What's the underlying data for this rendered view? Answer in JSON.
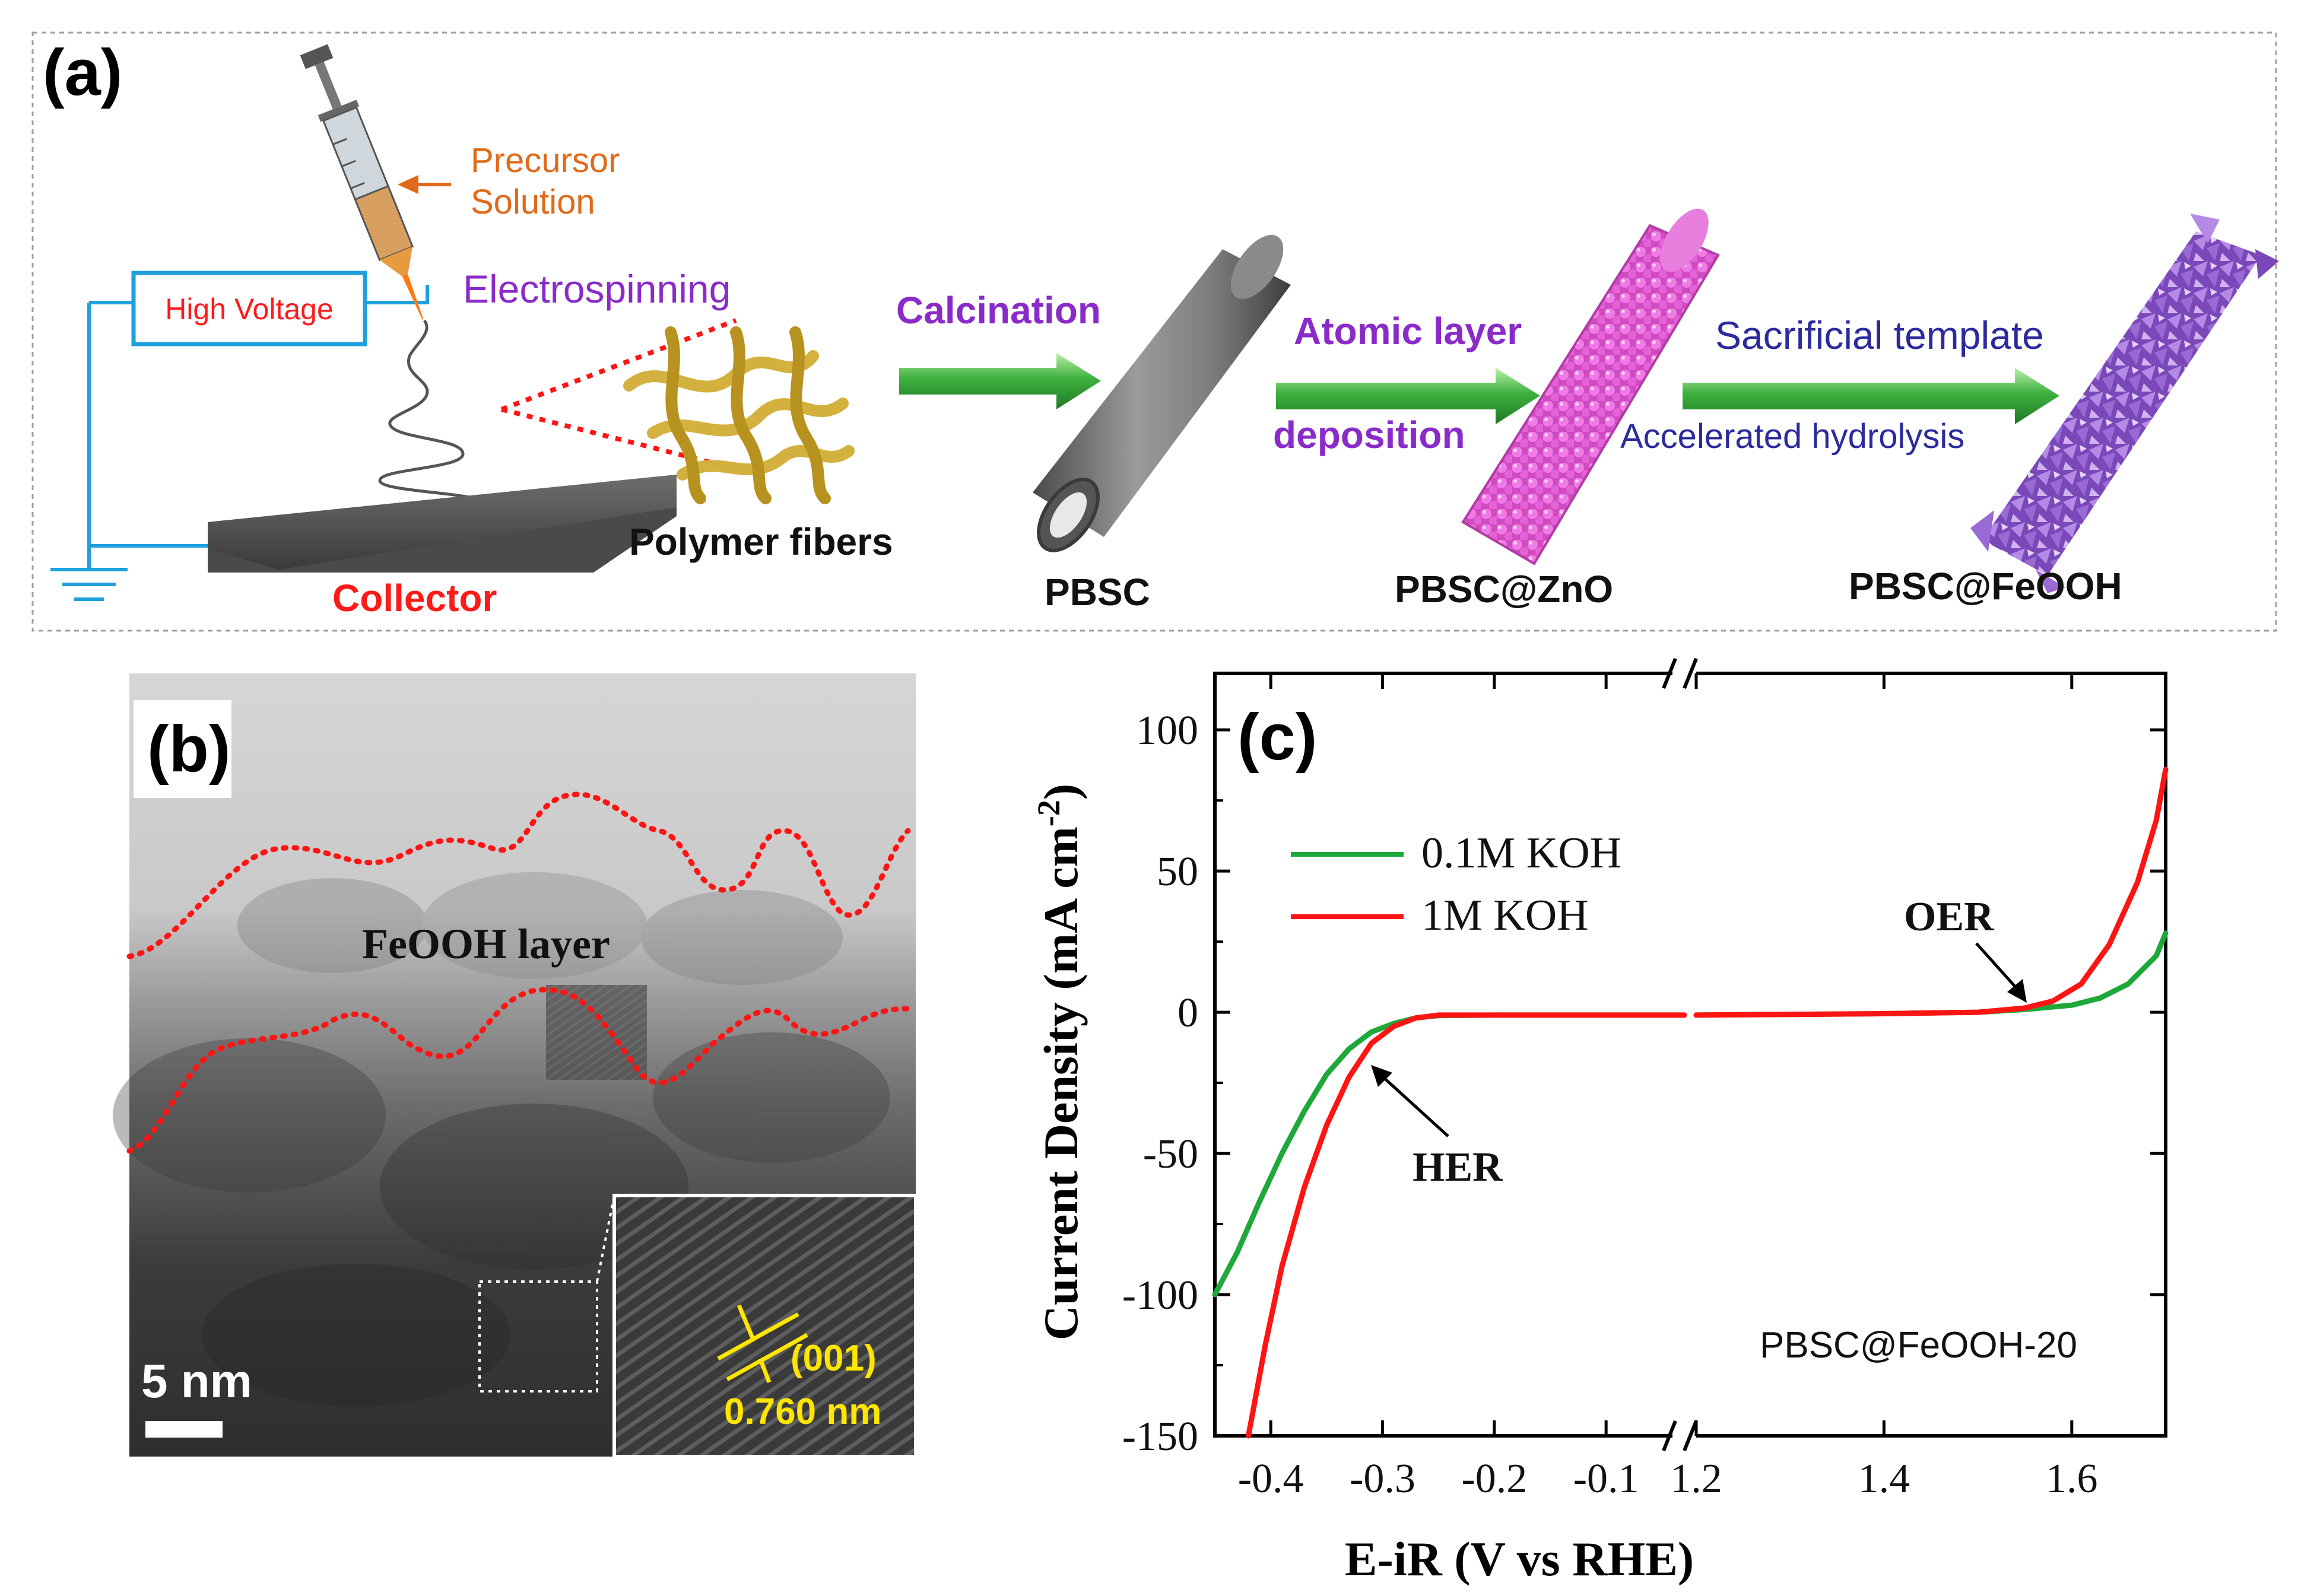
{
  "panel_a": {
    "label": "(a)",
    "precursor_line1": "Precursor",
    "precursor_line2": "Solution",
    "high_voltage": "High Voltage",
    "electrospinning": "Electrospinning",
    "collector": "Collector",
    "polymer_fibers": "Polymer fibers",
    "calcination": "Calcination",
    "pbsc": "PBSC",
    "ald_line1": "Atomic  layer",
    "ald_line2": "deposition",
    "pbsc_zno": "PBSC@ZnO",
    "sacrificial": "Sacrificial template",
    "accelerated": "Accelerated hydrolysis",
    "pbsc_feooh": "PBSC@FeOOH"
  },
  "panel_b": {
    "label": "(b)",
    "layer": "FeOOH layer",
    "scale_bar": "5 nm",
    "plane": "(001)",
    "spacing": "0.760 nm"
  },
  "panel_c": {
    "label": "(c)",
    "sample": "PBSC@FeOOH-20",
    "her": "HER",
    "oer": "OER"
  },
  "colors": {
    "cyan": "#1ea0dc",
    "red_label": "#ff1a1a",
    "purple": "#8a2bc9",
    "navy": "#2b2a9e",
    "orange": "#e06a1a",
    "green_arrow": "#3aa53a",
    "green_curve": "#1fa83a",
    "red_curve": "#ff1414",
    "yellow": "#ffe600"
  },
  "chart_data": {
    "type": "line",
    "title": "",
    "xlabel": "E-iR (V vs RHE)",
    "ylabel": "Current Density (mA cm",
    "ylabel_sup": "-2",
    "ylabel_close": ")",
    "ylim": [
      -150,
      120
    ],
    "y_ticks": [
      100,
      50,
      0,
      -50,
      -100,
      -150
    ],
    "y_tick_labels": [
      "100",
      "50",
      "0",
      "-50",
      "-100",
      "-150"
    ],
    "axis_break": true,
    "x_segments": [
      {
        "range": [
          -0.45,
          -0.03
        ],
        "ticks": [
          -0.4,
          -0.3,
          -0.2,
          -0.1
        ],
        "tick_labels": [
          "-0.4",
          "-0.3",
          "-0.2",
          "-0.1"
        ]
      },
      {
        "range": [
          1.2,
          1.7
        ],
        "ticks": [
          1.2,
          1.4,
          1.6
        ],
        "tick_labels": [
          "1.2",
          "1.4",
          "1.6"
        ]
      }
    ],
    "legend": "upper-left",
    "series": [
      {
        "name": "0.1M KOH",
        "color": "#1fa83a",
        "points": [
          [
            -0.45,
            -100
          ],
          [
            -0.43,
            -85
          ],
          [
            -0.41,
            -67
          ],
          [
            -0.39,
            -50
          ],
          [
            -0.37,
            -35
          ],
          [
            -0.35,
            -22
          ],
          [
            -0.33,
            -13
          ],
          [
            -0.31,
            -7
          ],
          [
            -0.29,
            -4
          ],
          [
            -0.27,
            -2
          ],
          [
            -0.25,
            -1.2
          ],
          [
            -0.2,
            -1
          ],
          [
            -0.1,
            -1
          ],
          [
            -0.03,
            -1
          ],
          [
            1.2,
            -1
          ],
          [
            1.4,
            -0.5
          ],
          [
            1.5,
            0
          ],
          [
            1.55,
            1
          ],
          [
            1.6,
            2.5
          ],
          [
            1.63,
            5
          ],
          [
            1.66,
            10
          ],
          [
            1.69,
            20
          ],
          [
            1.7,
            28
          ]
        ]
      },
      {
        "name": "1M KOH",
        "color": "#ff1414",
        "points": [
          [
            -0.42,
            -150
          ],
          [
            -0.405,
            -118
          ],
          [
            -0.39,
            -90
          ],
          [
            -0.37,
            -62
          ],
          [
            -0.35,
            -40
          ],
          [
            -0.33,
            -23
          ],
          [
            -0.31,
            -11
          ],
          [
            -0.29,
            -5
          ],
          [
            -0.27,
            -2
          ],
          [
            -0.25,
            -1
          ],
          [
            -0.2,
            -1
          ],
          [
            -0.1,
            -1
          ],
          [
            -0.03,
            -1
          ],
          [
            1.2,
            -1
          ],
          [
            1.4,
            -0.5
          ],
          [
            1.5,
            0
          ],
          [
            1.55,
            1.5
          ],
          [
            1.58,
            4
          ],
          [
            1.61,
            10
          ],
          [
            1.64,
            24
          ],
          [
            1.67,
            46
          ],
          [
            1.69,
            68
          ],
          [
            1.7,
            86
          ]
        ]
      }
    ]
  }
}
